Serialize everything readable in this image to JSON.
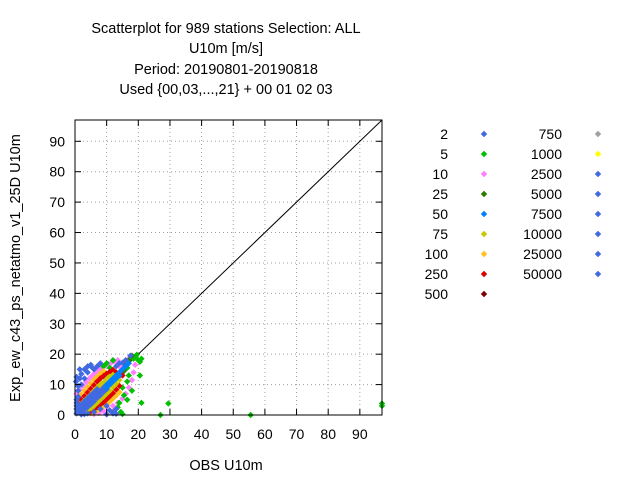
{
  "chart_data": {
    "type": "scatter",
    "title_lines": [
      "Scatterplot for  989 stations Selection: ALL",
      "U10m [m/s]",
      "Period: 20190801-20190818",
      "Used {00,03,...,21} + 00 01 02 03"
    ],
    "xlabel": "OBS U10m",
    "ylabel": "Exp_ew_c43_ps_netatmo_v1_25D U10m",
    "xlim": [
      0,
      97
    ],
    "ylim": [
      0,
      97
    ],
    "xticks": [
      0,
      10,
      20,
      30,
      40,
      50,
      60,
      70,
      80,
      90
    ],
    "yticks": [
      0,
      10,
      20,
      30,
      40,
      50,
      60,
      70,
      80,
      90
    ],
    "grid": true,
    "diagonal": true,
    "legend": {
      "placement": "right",
      "title": "",
      "entries": [
        {
          "label": "2",
          "color": "#4169e1"
        },
        {
          "label": "5",
          "color": "#00c000"
        },
        {
          "label": "10",
          "color": "#ff80ff"
        },
        {
          "label": "25",
          "color": "#2e7d00"
        },
        {
          "label": "50",
          "color": "#0080ff"
        },
        {
          "label": "75",
          "color": "#c8c800"
        },
        {
          "label": "100",
          "color": "#ffc020"
        },
        {
          "label": "250",
          "color": "#e00000"
        },
        {
          "label": "500",
          "color": "#800000"
        },
        {
          "label": "750",
          "color": "#a0a0a0"
        },
        {
          "label": "1000",
          "color": "#ffff00"
        },
        {
          "label": "2500",
          "color": "#4169e1"
        },
        {
          "label": "5000",
          "color": "#4169e1"
        },
        {
          "label": "7500",
          "color": "#4169e1"
        },
        {
          "label": "10000",
          "color": "#4169e1"
        },
        {
          "label": "25000",
          "color": "#4169e1"
        },
        {
          "label": "50000",
          "color": "#4169e1"
        }
      ]
    },
    "points": {
      "blue_core": [
        [
          0.5,
          0.5
        ],
        [
          1,
          1
        ],
        [
          1.5,
          1.2
        ],
        [
          2,
          2
        ],
        [
          2.5,
          2
        ],
        [
          3,
          3
        ],
        [
          3.5,
          3.2
        ],
        [
          4,
          4
        ],
        [
          4.5,
          4
        ],
        [
          5,
          5
        ],
        [
          5.5,
          5.2
        ],
        [
          6,
          6
        ],
        [
          6.5,
          6
        ],
        [
          7,
          7
        ],
        [
          7.5,
          7.5
        ],
        [
          8,
          8
        ],
        [
          8.5,
          8
        ],
        [
          9,
          9
        ],
        [
          1,
          2.5
        ],
        [
          2,
          3.5
        ],
        [
          3,
          4.5
        ],
        [
          4,
          5.5
        ],
        [
          5,
          6.5
        ],
        [
          6,
          7.5
        ],
        [
          7,
          8.5
        ],
        [
          2,
          0.8
        ],
        [
          3,
          1.8
        ],
        [
          4,
          2.6
        ],
        [
          5,
          3.5
        ],
        [
          6,
          4.5
        ],
        [
          7,
          5.6
        ],
        [
          8,
          6.5
        ],
        [
          9,
          7.6
        ],
        [
          10,
          8.5
        ],
        [
          0.5,
          2
        ],
        [
          0.5,
          4
        ],
        [
          1,
          6
        ],
        [
          1,
          8
        ],
        [
          2,
          10
        ],
        [
          3,
          12
        ],
        [
          4,
          14
        ],
        [
          5,
          16
        ],
        [
          0.3,
          11
        ],
        [
          2,
          0.2
        ],
        [
          4,
          0.5
        ],
        [
          6,
          1
        ],
        [
          8,
          2
        ],
        [
          10,
          3
        ],
        [
          11,
          1.5
        ],
        [
          13,
          2
        ],
        [
          12,
          0.5
        ]
      ],
      "yellow": [
        [
          1.5,
          3
        ],
        [
          2.5,
          4.2
        ],
        [
          3.5,
          5.2
        ],
        [
          4.5,
          6.2
        ],
        [
          5.5,
          7.4
        ],
        [
          6.5,
          8.5
        ],
        [
          7.5,
          9.5
        ],
        [
          8.5,
          10.3
        ],
        [
          9.5,
          11.2
        ],
        [
          10.5,
          12.3
        ],
        [
          3,
          1
        ],
        [
          4,
          1.6
        ],
        [
          5,
          2.2
        ],
        [
          6,
          3
        ],
        [
          7,
          4
        ],
        [
          8,
          5
        ],
        [
          9,
          6
        ],
        [
          10,
          7
        ],
        [
          11,
          8
        ],
        [
          12,
          9.2
        ],
        [
          13,
          10.3
        ],
        [
          11,
          12.6
        ],
        [
          12,
          13.2
        ],
        [
          13,
          12.5
        ],
        [
          14,
          11.5
        ]
      ],
      "red": [
        [
          1,
          3.8
        ],
        [
          2,
          5
        ],
        [
          3,
          6.2
        ],
        [
          4,
          7.4
        ],
        [
          5,
          8.6
        ],
        [
          6,
          9.8
        ],
        [
          7,
          11
        ],
        [
          8,
          12
        ],
        [
          9,
          12.8
        ],
        [
          10,
          13.6
        ],
        [
          11,
          14.2
        ],
        [
          12,
          14.8
        ],
        [
          4,
          0.8
        ],
        [
          5,
          1.2
        ],
        [
          6,
          1.8
        ],
        [
          7,
          2.6
        ],
        [
          8,
          3.4
        ],
        [
          9,
          4.2
        ],
        [
          10,
          5.2
        ],
        [
          11,
          6.2
        ],
        [
          12,
          7.2
        ],
        [
          13,
          8.4
        ],
        [
          14,
          9.6
        ],
        [
          14,
          12.8
        ],
        [
          13,
          14
        ],
        [
          15,
          13
        ]
      ],
      "orange": [
        [
          1,
          5.5
        ],
        [
          2,
          6.8
        ],
        [
          3,
          8
        ],
        [
          4,
          9.2
        ],
        [
          5,
          10.4
        ],
        [
          6,
          11.6
        ],
        [
          7,
          12.6
        ],
        [
          8,
          13.6
        ],
        [
          9,
          14.4
        ],
        [
          5,
          0.5
        ],
        [
          6,
          0.9
        ],
        [
          7,
          1.4
        ],
        [
          8,
          2
        ],
        [
          9,
          2.8
        ],
        [
          10,
          3.6
        ],
        [
          11,
          4.4
        ],
        [
          12,
          5.4
        ],
        [
          13,
          6.4
        ],
        [
          14,
          7.5
        ]
      ],
      "pink": [
        [
          0.5,
          7
        ],
        [
          1.5,
          8.4
        ],
        [
          2.5,
          9.6
        ],
        [
          3.5,
          10.8
        ],
        [
          4.5,
          12
        ],
        [
          5.5,
          13
        ],
        [
          6.5,
          14
        ],
        [
          7.5,
          14.8
        ],
        [
          8.5,
          15.6
        ],
        [
          9.5,
          16.2
        ],
        [
          10.5,
          16.8
        ],
        [
          11.5,
          17.2
        ],
        [
          12.5,
          17.6
        ],
        [
          13.5,
          18
        ],
        [
          6,
          0.3
        ],
        [
          7.5,
          0.6
        ],
        [
          9,
          1.2
        ],
        [
          10.5,
          2
        ],
        [
          12,
          3
        ],
        [
          13.5,
          4
        ],
        [
          15,
          5.4
        ],
        [
          16,
          7
        ],
        [
          17,
          9
        ],
        [
          18,
          11.5
        ],
        [
          18.5,
          14
        ],
        [
          19,
          16.5
        ],
        [
          16,
          17.5
        ],
        [
          17,
          18.5
        ],
        [
          14.5,
          15.5
        ],
        [
          15.5,
          16.5
        ]
      ],
      "green": [
        [
          18.5,
          18.5
        ],
        [
          19,
          19
        ],
        [
          20,
          18
        ],
        [
          20.5,
          17.5
        ],
        [
          21,
          18.5
        ],
        [
          19.5,
          19.8
        ],
        [
          17.5,
          18.5
        ],
        [
          16.5,
          15.5
        ],
        [
          17,
          13
        ],
        [
          16.5,
          11
        ],
        [
          15,
          9
        ],
        [
          15.5,
          6.5
        ],
        [
          14,
          4
        ],
        [
          13.5,
          2.5
        ],
        [
          14.5,
          1
        ],
        [
          15,
          0.3
        ],
        [
          20.5,
          13
        ],
        [
          21,
          4
        ],
        [
          27,
          0
        ],
        [
          29.5,
          3.8
        ],
        [
          55.5,
          0
        ],
        [
          97,
          3.8
        ],
        [
          97,
          3
        ],
        [
          16.5,
          5
        ],
        [
          18,
          8
        ],
        [
          9,
          16
        ],
        [
          10,
          17
        ],
        [
          12,
          18
        ],
        [
          11,
          15.5
        ]
      ],
      "darkgreen": [
        [
          17,
          18
        ],
        [
          18,
          19.5
        ],
        [
          16,
          16.5
        ],
        [
          14,
          13.5
        ],
        [
          15.5,
          14.5
        ]
      ],
      "blue_fringe": [
        [
          1,
          9.5
        ],
        [
          1.5,
          12
        ],
        [
          2,
          13.5
        ],
        [
          3,
          15
        ],
        [
          4,
          16
        ],
        [
          5,
          16.5
        ],
        [
          6,
          15
        ],
        [
          7,
          16
        ],
        [
          8,
          17
        ],
        [
          13,
          16
        ],
        [
          14,
          17
        ],
        [
          15,
          17.2
        ],
        [
          16,
          18
        ],
        [
          17.5,
          19.5
        ],
        [
          0.5,
          5
        ],
        [
          0.5,
          3
        ],
        [
          3,
          0.3
        ],
        [
          10,
          0.2
        ],
        [
          12,
          1
        ],
        [
          13,
          0.4
        ],
        [
          1.5,
          15
        ],
        [
          0.5,
          12.5
        ]
      ],
      "blue_on_diag": [
        [
          10,
          10
        ],
        [
          11,
          11
        ],
        [
          12,
          12
        ],
        [
          13,
          13
        ],
        [
          14,
          14
        ],
        [
          15,
          15
        ],
        [
          16,
          16
        ],
        [
          17,
          17
        ],
        [
          12,
          11
        ],
        [
          13,
          12
        ],
        [
          14,
          13
        ],
        [
          11,
          10
        ],
        [
          10,
          9
        ]
      ]
    }
  }
}
